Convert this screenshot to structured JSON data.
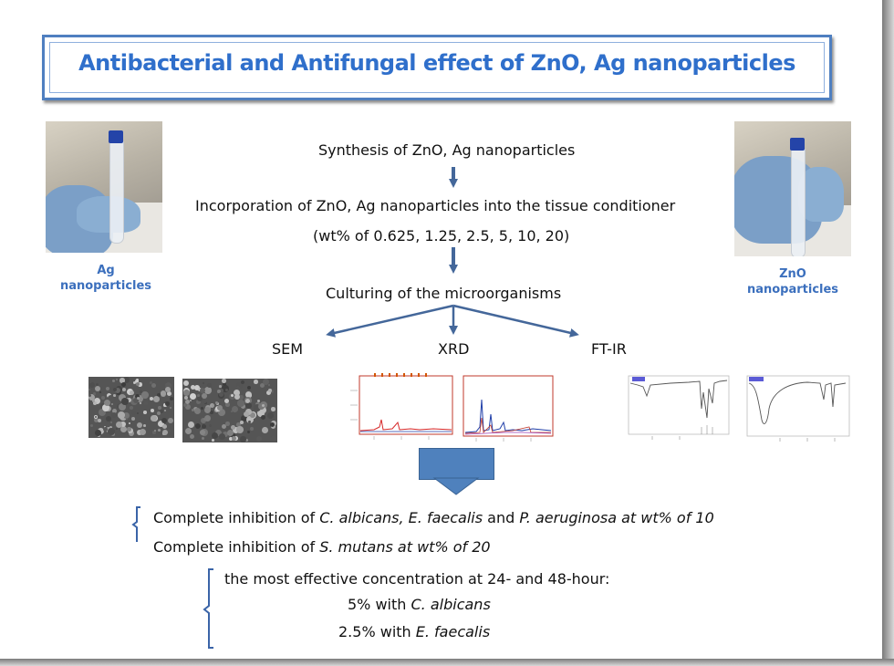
{
  "title": "Antibacterial and Antifungal effect of ZnO, Ag nanoparticles",
  "left_photo_label": [
    "Ag",
    "nanoparticles"
  ],
  "right_photo_label": [
    "ZnO",
    "nanoparticles"
  ],
  "flow": {
    "step1": "Synthesis  of ZnO, Ag nanoparticles",
    "step2": "Incorporation of ZnO, Ag nanoparticles into the tissue conditioner",
    "step2_detail": "(wt% of 0.625, 1.25, 2.5, 5, 10, 20)",
    "step3": "Culturing of the microorganisms",
    "branches": [
      "SEM",
      "XRD",
      "FT-IR"
    ]
  },
  "results": {
    "line1_a": "Complete inhibition  of ",
    "line1_b": "C. albicans,  E. faecalis",
    "line1_c": " and ",
    "line1_d": "P. aeruginosa  at wt% of 10",
    "line2_a": "Complete inhibition  of ",
    "line2_b": "S. mutans at wt% of 20",
    "effective_heading": "the most effective concentration at 24- and 48-hour:",
    "eff1_a": "5% with ",
    "eff1_b": "C. albicans",
    "eff2_a": "2.5% with ",
    "eff2_b": "E. faecalis"
  },
  "colors": {
    "title": "#2f6fcb",
    "title_border": "#4f7fc0",
    "arrow": "#44679a",
    "label": "#3b6fbd",
    "down_arrow_fill": "#4f81bd"
  }
}
